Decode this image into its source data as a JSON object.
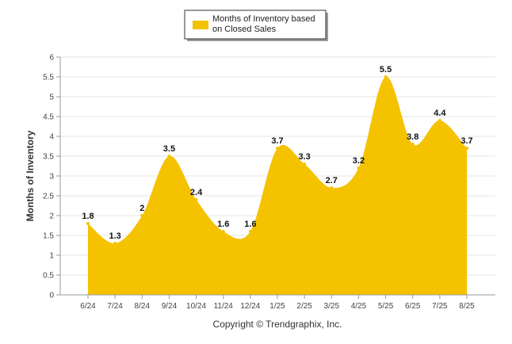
{
  "chart_data": {
    "type": "area",
    "categories": [
      "6/24",
      "7/24",
      "8/24",
      "9/24",
      "10/24",
      "11/24",
      "12/24",
      "1/25",
      "2/25",
      "3/25",
      "4/25",
      "5/25",
      "6/25",
      "7/25",
      "8/25"
    ],
    "series": [
      {
        "name": "Months of Inventory based on Closed Sales",
        "values": [
          1.8,
          1.3,
          2,
          3.5,
          2.4,
          1.6,
          1.6,
          3.7,
          3.3,
          2.7,
          3.2,
          5.5,
          3.8,
          4.4,
          3.7
        ],
        "color": "#f5c200"
      }
    ],
    "data_labels": [
      "1.8",
      "1.3",
      "2",
      "3.5",
      "2.4",
      "1.6",
      "1.6",
      "3.7",
      "3.3",
      "2.7",
      "3.2",
      "5.5",
      "3.8",
      "4.4",
      "3.7"
    ],
    "ylabel": "Months of Inventory",
    "xlabel": "",
    "ylim": [
      0,
      6
    ],
    "yticks": [
      "0",
      "0.5",
      "1",
      "1.5",
      "2",
      "2.5",
      "3",
      "3.5",
      "4",
      "4.5",
      "5",
      "5.5",
      "6"
    ],
    "grid": true,
    "legend": {
      "position": "top-center",
      "label_line1": "Months of Inventory based",
      "label_line2": "on Closed Sales"
    },
    "credit": "Copyright © Trendgraphix, Inc."
  }
}
